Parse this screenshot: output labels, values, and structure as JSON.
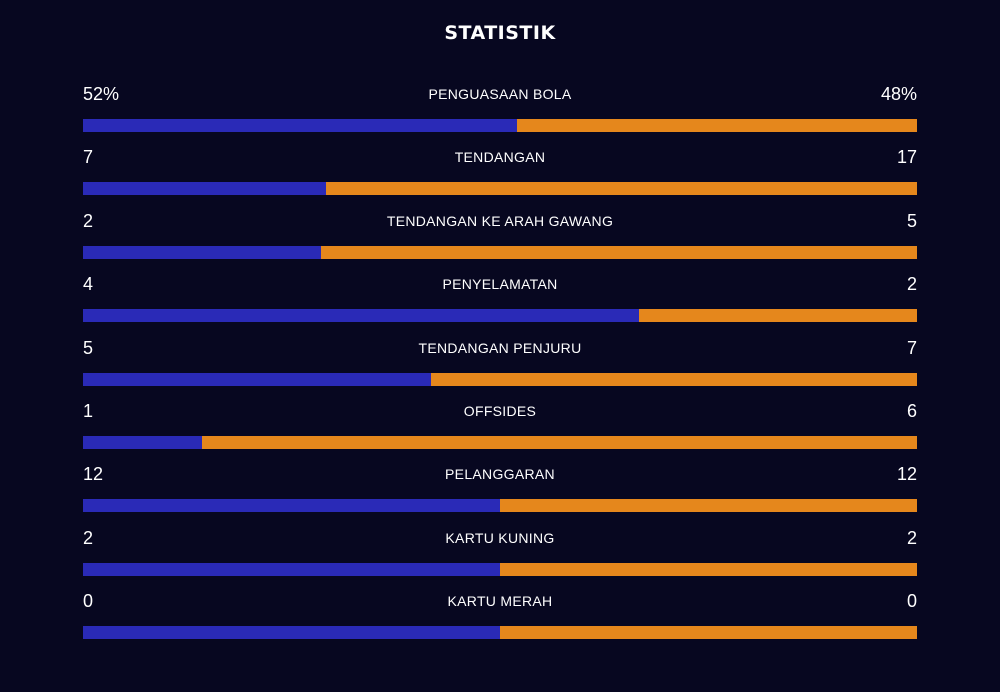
{
  "page": {
    "title": "STATISTIK"
  },
  "colors": {
    "background": "#070720",
    "home": "#2a2ab7",
    "away": "#e5871c",
    "text": "#ffffff"
  },
  "stats": [
    {
      "label": "PENGUASAAN BOLA",
      "home": "52%",
      "away": "48%",
      "home_share": 0.52
    },
    {
      "label": "TENDANGAN",
      "home": "7",
      "away": "17",
      "home_share": 0.2917
    },
    {
      "label": "TENDANGAN KE ARAH GAWANG",
      "home": "2",
      "away": "5",
      "home_share": 0.2857
    },
    {
      "label": "PENYELAMATAN",
      "home": "4",
      "away": "2",
      "home_share": 0.6667
    },
    {
      "label": "TENDANGAN PENJURU",
      "home": "5",
      "away": "7",
      "home_share": 0.4167
    },
    {
      "label": "OFFSIDES",
      "home": "1",
      "away": "6",
      "home_share": 0.1429
    },
    {
      "label": "PELANGGARAN",
      "home": "12",
      "away": "12",
      "home_share": 0.5
    },
    {
      "label": "KARTU KUNING",
      "home": "2",
      "away": "2",
      "home_share": 0.5
    },
    {
      "label": "KARTU MERAH",
      "home": "0",
      "away": "0",
      "home_share": 0.5
    }
  ]
}
